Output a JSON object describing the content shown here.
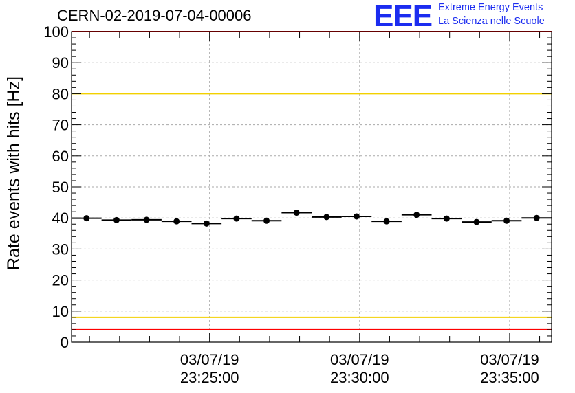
{
  "header": {
    "title": "CERN-02-2019-07-04-00006",
    "logo_text": "EEE",
    "logo_line1": "Extreme Energy Events",
    "logo_line2": "La Scienza nelle Scuole"
  },
  "colors": {
    "data": "#000000",
    "limit_red": "#ff0000",
    "limit_yellow": "#f2d000",
    "grid": "#aaaaaa",
    "logo_blue": "#1b2cf0"
  },
  "chart_data": {
    "type": "scatter",
    "ylabel": "Rate events with hits [Hz]",
    "xlabel": "",
    "ylim": [
      0,
      100
    ],
    "yticks": [
      0,
      10,
      20,
      30,
      40,
      50,
      60,
      70,
      80,
      90,
      100
    ],
    "grid": true,
    "x_tick_labels": [
      {
        "date": "03/07/19",
        "time": "23:25:00"
      },
      {
        "date": "03/07/19",
        "time": "23:30:00"
      },
      {
        "date": "03/07/19",
        "time": "23:35:00"
      }
    ],
    "xlim": [
      "03/07/19 23:20:24",
      "03/07/19 23:36:24"
    ],
    "horizontal_lines": [
      {
        "y": 100,
        "color": "red"
      },
      {
        "y": 80,
        "color": "yellow"
      },
      {
        "y": 8,
        "color": "yellow"
      },
      {
        "y": 4,
        "color": "red"
      }
    ],
    "series": [
      {
        "x": [
          "23:20:54",
          "23:21:54",
          "23:22:54",
          "23:23:54",
          "23:24:54",
          "23:25:54",
          "23:26:54",
          "23:27:54",
          "23:28:54",
          "23:29:54",
          "23:30:54",
          "23:31:54",
          "23:32:54",
          "23:33:54",
          "23:34:54",
          "23:35:54"
        ],
        "y": [
          39.9,
          39.3,
          39.4,
          38.9,
          38.2,
          39.8,
          39.1,
          41.7,
          40.3,
          40.5,
          38.9,
          41.0,
          39.8,
          38.7,
          39.1,
          40.0
        ],
        "x_error_sec": 30
      }
    ]
  }
}
